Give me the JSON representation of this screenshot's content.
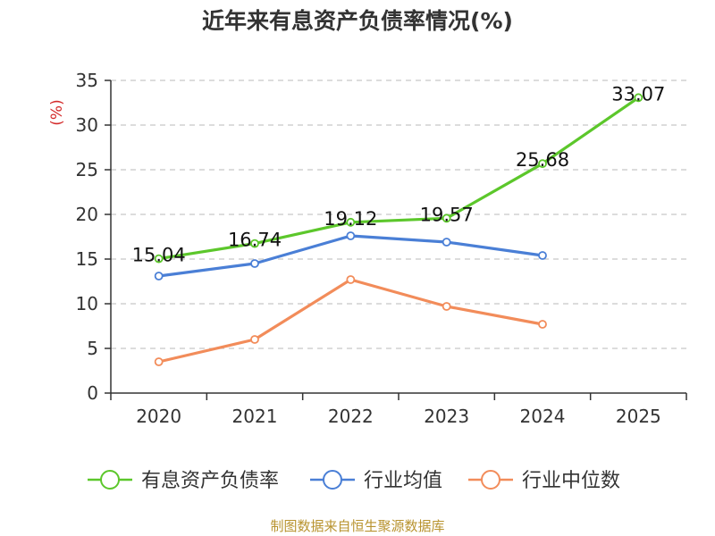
{
  "chart_data": {
    "type": "line",
    "title": "近年来有息资产负债率情况(%)",
    "ylabel": "(%)",
    "xlabel": "",
    "categories": [
      "2020",
      "2021",
      "2022",
      "2023",
      "2024",
      "2025"
    ],
    "ylim": [
      0,
      35
    ],
    "yticks": [
      0,
      5,
      10,
      15,
      20,
      25,
      30,
      35
    ],
    "grid": true,
    "legend_position": "bottom",
    "series": [
      {
        "name": "有息资产负债率",
        "color": "#5cc72b",
        "values": [
          15.04,
          16.74,
          19.12,
          19.57,
          25.68,
          33.07
        ],
        "labels": [
          "15.04",
          "16.74",
          "19.12",
          "19.57",
          "25.68",
          "33.07"
        ]
      },
      {
        "name": "行业均值",
        "color": "#4a7fd6",
        "values": [
          13.1,
          14.5,
          17.6,
          16.9,
          15.4,
          null
        ]
      },
      {
        "name": "行业中位数",
        "color": "#f28c5a",
        "values": [
          3.5,
          6.0,
          12.7,
          9.7,
          7.7,
          null
        ]
      }
    ]
  },
  "source": "制图数据来自恒生聚源数据库"
}
